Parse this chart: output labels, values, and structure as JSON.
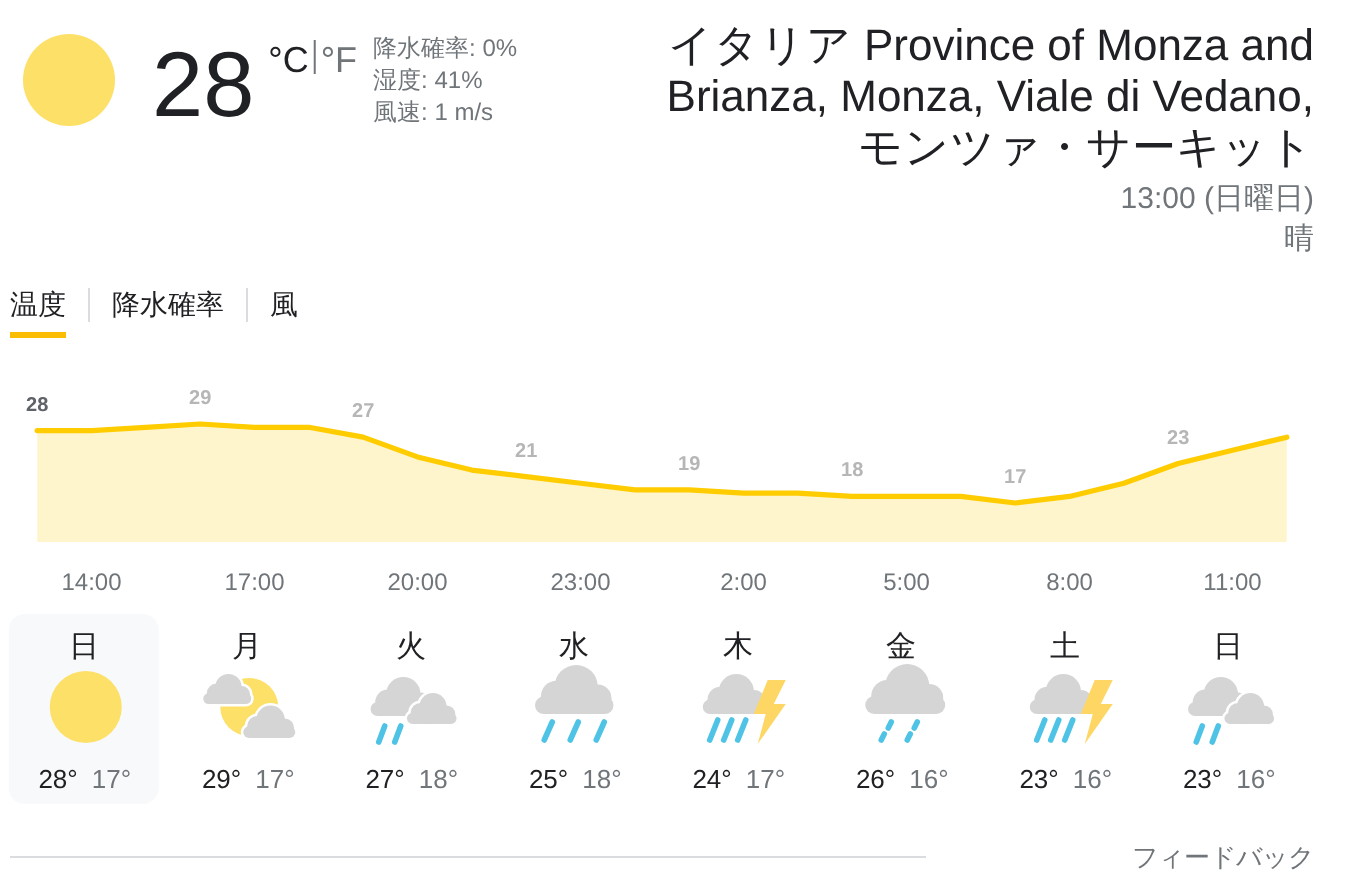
{
  "chart_data": [
    {
      "type": "other",
      "title": "イタリア Province of Monza and Brianza, Monza, Viale di Vedano, モンツァ・サーキット",
      "subtitle": "13:00 (日曜日)",
      "annotations": [
        "28",
        "°C",
        "°F",
        "降水確率: 0%",
        "湿度: 41%",
        "風速: 1 m/s",
        "晴"
      ]
    },
    {
      "type": "area",
      "categories": [
        null,
        "14:00",
        null,
        null,
        "17:00",
        null,
        null,
        "20:00",
        null,
        null,
        "23:00",
        null,
        null,
        "2:00",
        null,
        null,
        "5:00",
        null,
        null,
        "8:00",
        null,
        null,
        "11:00",
        null
      ],
      "series": [
        {
          "color": "#ffcc00",
          "values": [
            28,
            28,
            28.5,
            29,
            28.5,
            28.5,
            27,
            24,
            22,
            21,
            20,
            19,
            19,
            18.5,
            18.5,
            18,
            18,
            18,
            17,
            18,
            20,
            23,
            25,
            27
          ],
          "value_labels": [
            "28",
            null,
            null,
            "29",
            null,
            null,
            "27",
            null,
            null,
            "21",
            null,
            null,
            "19",
            null,
            null,
            "18",
            null,
            null,
            "17",
            null,
            null,
            "23",
            null,
            null
          ]
        }
      ],
      "tick_labels": "x",
      "annotations": [
        "温度",
        "降水確率",
        "風"
      ]
    },
    {
      "type": "other",
      "categories": [
        "日",
        "月",
        "火",
        "水",
        "木",
        "金",
        "土",
        "日"
      ],
      "series": [
        {
          "values": [
            28,
            29,
            27,
            25,
            24,
            26,
            23,
            23
          ],
          "value_labels": [
            "28°",
            "29°",
            "27°",
            "25°",
            "24°",
            "26°",
            "23°",
            "23°"
          ]
        },
        {
          "values": [
            17,
            17,
            18,
            18,
            17,
            16,
            16,
            16
          ],
          "value_labels": [
            "17°",
            "17°",
            "18°",
            "18°",
            "17°",
            "16°",
            "16°",
            "16°"
          ]
        }
      ],
      "annotations": [
        "フィードバック"
      ]
    }
  ]
}
